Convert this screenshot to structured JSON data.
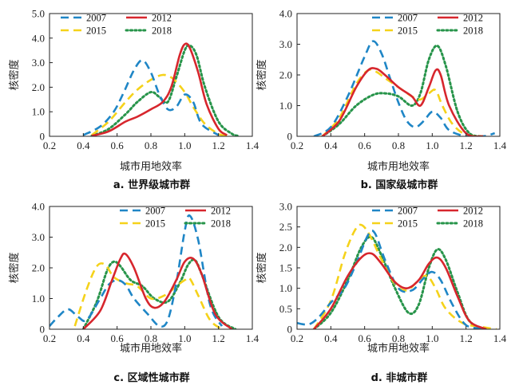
{
  "colors": {
    "2007": "#1f86c6",
    "2012": "#d7262d",
    "2015": "#f5d21a",
    "2018": "#27944a"
  },
  "chart_data": [
    {
      "type": "line",
      "title": "a. 世界级城市群",
      "xlabel": "城市用地效率",
      "ylabel": "核密度",
      "xlim": [
        0.2,
        1.4
      ],
      "ylim": [
        0,
        5.0
      ],
      "xticks": [
        "0.2",
        "0.4",
        "0.6",
        "0.8",
        "1.0",
        "1.2",
        "1.4"
      ],
      "yticks": [
        "0",
        "1.0",
        "2.0",
        "3.0",
        "4.0",
        "5.0"
      ],
      "legend": [
        "2007",
        "2012",
        "2015",
        "2018"
      ],
      "legend_position": "top-left",
      "series": [
        {
          "name": "2007",
          "style": "dashed",
          "x": [
            0.4,
            0.5,
            0.58,
            0.64,
            0.7,
            0.75,
            0.8,
            0.85,
            0.9,
            0.95,
            1.0,
            1.05,
            1.1,
            1.2
          ],
          "y": [
            0.05,
            0.4,
            1.0,
            1.8,
            2.7,
            3.1,
            2.6,
            1.7,
            1.1,
            1.2,
            1.7,
            1.4,
            0.5,
            0.05
          ]
        },
        {
          "name": "2012",
          "style": "solid",
          "x": [
            0.45,
            0.55,
            0.65,
            0.72,
            0.8,
            0.87,
            0.92,
            0.97,
            1.0,
            1.03,
            1.08,
            1.13,
            1.2,
            1.25
          ],
          "y": [
            0.02,
            0.2,
            0.6,
            0.8,
            1.1,
            1.4,
            2.0,
            3.3,
            3.75,
            3.6,
            2.6,
            1.3,
            0.3,
            0.05
          ]
        },
        {
          "name": "2015",
          "style": "dashed",
          "x": [
            0.45,
            0.55,
            0.65,
            0.72,
            0.8,
            0.87,
            0.93,
            1.0,
            1.05,
            1.12,
            1.2,
            1.25
          ],
          "y": [
            0.05,
            0.6,
            1.4,
            1.9,
            2.3,
            2.5,
            2.35,
            1.8,
            1.2,
            0.5,
            0.1,
            0.02
          ]
        },
        {
          "name": "2018",
          "style": "dotted",
          "x": [
            0.45,
            0.55,
            0.65,
            0.72,
            0.8,
            0.85,
            0.9,
            0.95,
            1.0,
            1.03,
            1.07,
            1.12,
            1.2,
            1.28,
            1.32
          ],
          "y": [
            0.02,
            0.3,
            0.9,
            1.4,
            1.8,
            1.6,
            1.4,
            2.4,
            3.5,
            3.7,
            3.3,
            2.0,
            0.6,
            0.1,
            0.02
          ]
        }
      ]
    },
    {
      "type": "line",
      "title": "b. 国家级城市群",
      "xlabel": "城市用地效率",
      "ylabel": "核密度",
      "xlim": [
        0.2,
        1.4
      ],
      "ylim": [
        0,
        4.0
      ],
      "xticks": [
        "0.2",
        "0.4",
        "0.6",
        "0.8",
        "1.0",
        "1.2",
        "1.4"
      ],
      "yticks": [
        "0",
        "1.0",
        "2.0",
        "3.0",
        "4.0"
      ],
      "legend": [
        "2007",
        "2012",
        "2015",
        "2018"
      ],
      "legend_position": "top-right",
      "series": [
        {
          "name": "2007",
          "style": "dashed",
          "x": [
            0.3,
            0.4,
            0.5,
            0.6,
            0.65,
            0.7,
            0.75,
            0.8,
            0.85,
            0.9,
            0.95,
            1.0,
            1.05,
            1.1,
            1.2,
            1.3,
            1.37
          ],
          "y": [
            0.0,
            0.3,
            1.3,
            2.6,
            3.1,
            2.7,
            1.9,
            1.1,
            0.5,
            0.3,
            0.5,
            0.8,
            0.6,
            0.2,
            0.0,
            0.0,
            0.1
          ]
        },
        {
          "name": "2012",
          "style": "solid",
          "x": [
            0.35,
            0.45,
            0.55,
            0.62,
            0.67,
            0.72,
            0.8,
            0.88,
            0.93,
            0.98,
            1.02,
            1.05,
            1.1,
            1.2,
            1.3
          ],
          "y": [
            0.0,
            0.5,
            1.6,
            2.15,
            2.2,
            2.0,
            1.6,
            1.3,
            1.0,
            1.6,
            2.15,
            2.0,
            1.0,
            0.1,
            0.0
          ]
        },
        {
          "name": "2015",
          "style": "dashed",
          "x": [
            0.35,
            0.45,
            0.55,
            0.62,
            0.67,
            0.72,
            0.8,
            0.88,
            0.93,
            0.98,
            1.02,
            1.06,
            1.12,
            1.2,
            1.3
          ],
          "y": [
            0.0,
            0.6,
            1.7,
            2.15,
            2.1,
            1.9,
            1.6,
            1.3,
            1.2,
            1.4,
            1.5,
            1.0,
            0.4,
            0.05,
            0.0
          ]
        },
        {
          "name": "2018",
          "style": "dotted",
          "x": [
            0.35,
            0.45,
            0.55,
            0.65,
            0.72,
            0.8,
            0.88,
            0.93,
            0.98,
            1.03,
            1.08,
            1.15,
            1.22,
            1.3
          ],
          "y": [
            0.0,
            0.4,
            1.0,
            1.35,
            1.4,
            1.3,
            1.0,
            1.4,
            2.5,
            2.95,
            2.3,
            0.8,
            0.1,
            0.0
          ]
        }
      ]
    },
    {
      "type": "line",
      "title": "c. 区域性城市群",
      "xlabel": "城市用地效率",
      "ylabel": "核密度",
      "xlim": [
        0.2,
        1.4
      ],
      "ylim": [
        0,
        4.0
      ],
      "xticks": [
        "0.2",
        "0.4",
        "0.6",
        "0.8",
        "1.0",
        "1.2",
        "1.4"
      ],
      "yticks": [
        "0",
        "1.0",
        "2.0",
        "3.0",
        "4.0"
      ],
      "legend": [
        "2007",
        "2012",
        "2015",
        "2018"
      ],
      "legend_position": "top-right",
      "series": [
        {
          "name": "2007",
          "style": "dashed",
          "x": [
            0.2,
            0.25,
            0.31,
            0.37,
            0.42,
            0.5,
            0.55,
            0.6,
            0.65,
            0.7,
            0.78,
            0.85,
            0.9,
            0.95,
            1.0,
            1.03,
            1.08,
            1.15,
            1.22
          ],
          "y": [
            0.1,
            0.4,
            0.65,
            0.4,
            0.3,
            1.0,
            1.45,
            1.6,
            1.45,
            1.0,
            0.5,
            0.1,
            0.3,
            1.5,
            3.2,
            3.7,
            2.9,
            0.8,
            0.1
          ]
        },
        {
          "name": "2012",
          "style": "solid",
          "x": [
            0.4,
            0.5,
            0.57,
            0.62,
            0.65,
            0.7,
            0.77,
            0.82,
            0.88,
            0.95,
            1.0,
            1.05,
            1.1,
            1.18,
            1.28
          ],
          "y": [
            0.0,
            0.6,
            1.6,
            2.3,
            2.45,
            2.0,
            1.0,
            0.7,
            0.9,
            1.6,
            2.2,
            2.3,
            1.8,
            0.5,
            0.0
          ]
        },
        {
          "name": "2015",
          "style": "dashed",
          "x": [
            0.35,
            0.42,
            0.48,
            0.53,
            0.58,
            0.65,
            0.72,
            0.8,
            0.88,
            0.95,
            1.0,
            1.03,
            1.08,
            1.15,
            1.22
          ],
          "y": [
            0.1,
            1.3,
            2.05,
            2.1,
            1.7,
            1.5,
            1.4,
            1.0,
            1.1,
            1.4,
            1.6,
            1.65,
            1.1,
            0.3,
            0.0
          ]
        },
        {
          "name": "2018",
          "style": "dotted",
          "x": [
            0.4,
            0.48,
            0.54,
            0.58,
            0.62,
            0.68,
            0.75,
            0.82,
            0.9,
            0.97,
            1.02,
            1.06,
            1.1,
            1.2,
            1.3
          ],
          "y": [
            0.0,
            0.9,
            1.9,
            2.2,
            2.05,
            1.6,
            1.4,
            1.0,
            0.9,
            1.5,
            2.1,
            2.25,
            1.8,
            0.4,
            0.0
          ]
        }
      ]
    },
    {
      "type": "line",
      "title": "d. 非城市群",
      "xlabel": "城市用地效率",
      "ylabel": "核密度",
      "xlim": [
        0.2,
        1.4
      ],
      "ylim": [
        0,
        3.0
      ],
      "xticks": [
        "0.2",
        "0.4",
        "0.6",
        "0.8",
        "1.0",
        "1.2",
        "1.4"
      ],
      "yticks": [
        "0",
        "0.5",
        "1.0",
        "1.5",
        "2.0",
        "2.5",
        "3.0"
      ],
      "legend": [
        "2007",
        "2012",
        "2015",
        "2018"
      ],
      "legend_position": "top-right",
      "series": [
        {
          "name": "2007",
          "style": "dashed",
          "x": [
            0.2,
            0.27,
            0.33,
            0.4,
            0.48,
            0.55,
            0.62,
            0.66,
            0.72,
            0.8,
            0.88,
            0.95,
            1.0,
            1.05,
            1.12,
            1.2,
            1.3
          ],
          "y": [
            0.15,
            0.12,
            0.3,
            0.65,
            1.0,
            1.6,
            2.3,
            2.35,
            1.7,
            1.0,
            0.95,
            1.25,
            1.4,
            1.2,
            0.6,
            0.1,
            0.02
          ]
        },
        {
          "name": "2012",
          "style": "solid",
          "x": [
            0.3,
            0.4,
            0.5,
            0.58,
            0.64,
            0.7,
            0.78,
            0.85,
            0.92,
            0.98,
            1.03,
            1.08,
            1.15,
            1.22,
            1.32
          ],
          "y": [
            0.0,
            0.5,
            1.3,
            1.75,
            1.85,
            1.6,
            1.15,
            1.0,
            1.2,
            1.6,
            1.75,
            1.5,
            0.8,
            0.2,
            0.0
          ]
        },
        {
          "name": "2015",
          "style": "dashed",
          "x": [
            0.3,
            0.4,
            0.48,
            0.54,
            0.58,
            0.63,
            0.7,
            0.78,
            0.85,
            0.92,
            0.97,
            1.02,
            1.08,
            1.18,
            1.3,
            1.38
          ],
          "y": [
            0.0,
            0.7,
            1.8,
            2.4,
            2.55,
            2.3,
            1.7,
            1.1,
            0.95,
            1.2,
            1.3,
            1.0,
            0.5,
            0.15,
            0.05,
            0.0
          ]
        },
        {
          "name": "2018",
          "style": "dotted",
          "x": [
            0.3,
            0.4,
            0.5,
            0.58,
            0.64,
            0.7,
            0.78,
            0.86,
            0.92,
            0.98,
            1.03,
            1.08,
            1.15,
            1.22,
            1.32
          ],
          "y": [
            0.0,
            0.4,
            1.2,
            2.0,
            2.25,
            1.8,
            1.0,
            0.4,
            0.6,
            1.5,
            1.95,
            1.7,
            0.9,
            0.2,
            0.0
          ]
        }
      ]
    }
  ]
}
